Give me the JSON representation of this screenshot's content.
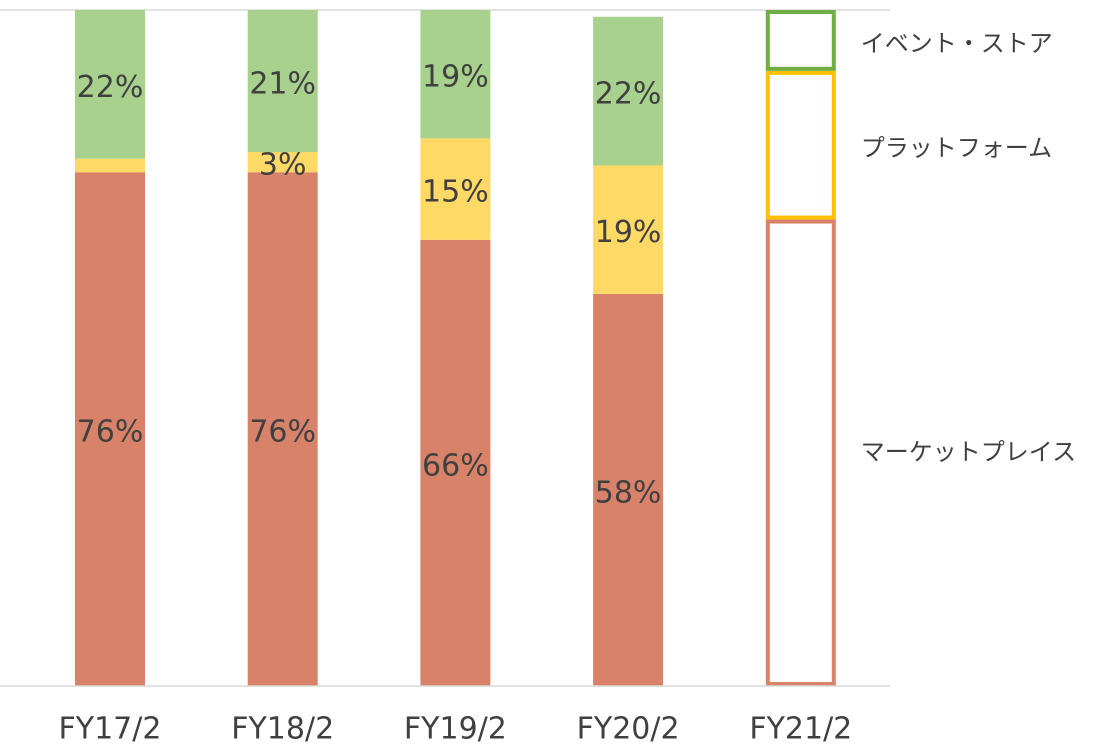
{
  "chart_data": {
    "type": "stacked_bar",
    "categories": [
      "FY17/2",
      "FY18/2",
      "FY19/2",
      "FY20/2",
      "FY21/2"
    ],
    "series": [
      {
        "name": "マーケットプレイス",
        "color": "#d9826a",
        "values": [
          76,
          76,
          66,
          58,
          69
        ],
        "value_labels": [
          "76%",
          "76%",
          "66%",
          "58%",
          null
        ]
      },
      {
        "name": "プラットフォーム",
        "color": "#ffd966",
        "values": [
          2,
          3,
          15,
          19,
          22
        ],
        "value_labels": [
          null,
          "3%",
          "15%",
          "19%",
          null
        ]
      },
      {
        "name": "イベント・ストア",
        "color": "#a9d18e",
        "values": [
          22,
          21,
          19,
          22,
          9
        ],
        "value_labels": [
          "22%",
          "21%",
          "19%",
          "22%",
          null
        ]
      }
    ],
    "outline_colors": [
      "#d9826a",
      "#ffc000",
      "#70ad47"
    ],
    "outlined": [
      false,
      false,
      false,
      false,
      true
    ],
    "ylim": [
      0,
      100
    ]
  }
}
